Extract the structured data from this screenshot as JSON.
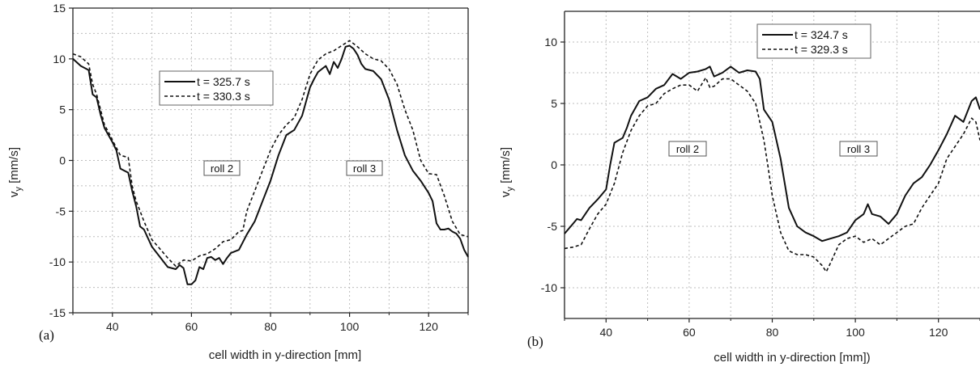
{
  "chart_data": [
    {
      "panel_label": "(a)",
      "type": "line",
      "xlabel": "cell width in y-direction [mm]",
      "ylabel_main": "v",
      "ylabel_sub": "y",
      "ylabel_unit": " [mm/s]",
      "xlim": [
        30,
        130
      ],
      "ylim": [
        -15,
        15
      ],
      "xticks": [
        40,
        60,
        80,
        100,
        120
      ],
      "yticks": [
        -15,
        -10,
        -5,
        0,
        5,
        10,
        15
      ],
      "grid": true,
      "legend_position": "top-left",
      "annotations": [
        {
          "text": "roll 2",
          "x": 56,
          "y": 0
        },
        {
          "text": "roll 3",
          "x": 99,
          "y": 0
        }
      ],
      "series": [
        {
          "name": "t = 325.7 s",
          "style": "solid",
          "x": [
            30,
            32,
            34,
            35,
            36,
            37,
            38,
            39,
            40,
            41,
            42,
            43,
            44,
            45,
            46,
            47,
            48,
            50,
            52,
            54,
            56,
            57,
            58,
            59,
            60,
            61,
            62,
            63,
            64,
            65,
            66,
            67,
            68,
            69,
            70,
            72,
            74,
            76,
            78,
            80,
            82,
            84,
            86,
            88,
            90,
            91,
            92,
            93,
            94,
            95,
            96,
            97,
            98,
            99,
            100,
            101,
            102,
            103,
            104,
            106,
            108,
            110,
            112,
            114,
            116,
            118,
            120,
            121,
            122,
            123,
            124,
            125,
            126,
            127,
            128,
            129,
            130
          ],
          "y": [
            10,
            9.3,
            8.9,
            6.5,
            6.2,
            4.5,
            3.2,
            2.5,
            1.8,
            1,
            -0.8,
            -1,
            -1.2,
            -3,
            -4.5,
            -6.5,
            -6.8,
            -8.5,
            -9.5,
            -10.5,
            -10.7,
            -10.3,
            -10.6,
            -12.2,
            -12.2,
            -11.8,
            -10.5,
            -10.7,
            -9.6,
            -9.5,
            -9.8,
            -9.6,
            -10.2,
            -9.6,
            -9.1,
            -8.8,
            -7.3,
            -6,
            -4,
            -2,
            0.5,
            2.5,
            3,
            4.4,
            7.2,
            8,
            8.7,
            9,
            9.3,
            8.5,
            9.7,
            9.1,
            10,
            11.2,
            11.3,
            11,
            10.4,
            9.5,
            9,
            8.8,
            8,
            6,
            3,
            0.5,
            -1,
            -2,
            -3.2,
            -4,
            -6.2,
            -6.8,
            -6.8,
            -6.7,
            -7,
            -7.2,
            -7.7,
            -8.8,
            -9.5
          ]
        },
        {
          "name": "t = 330.3 s",
          "style": "dashed",
          "x": [
            30,
            32,
            34,
            35,
            36,
            37,
            38,
            39,
            40,
            42,
            44,
            45,
            46,
            47,
            48,
            50,
            52,
            54,
            56,
            58,
            60,
            62,
            64,
            66,
            68,
            70,
            72,
            73,
            74,
            76,
            78,
            80,
            82,
            84,
            86,
            88,
            90,
            92,
            94,
            96,
            98,
            100,
            102,
            104,
            106,
            108,
            110,
            112,
            114,
            116,
            118,
            120,
            122,
            124,
            126,
            128,
            130
          ],
          "y": [
            10.5,
            10.2,
            9.5,
            7.5,
            6.5,
            5,
            3.5,
            2.8,
            2,
            0.5,
            0.3,
            -2.5,
            -4,
            -5,
            -6,
            -7.8,
            -8.7,
            -9.6,
            -10.4,
            -9.8,
            -9.9,
            -9.4,
            -9.2,
            -8.7,
            -8,
            -7.8,
            -7,
            -6.9,
            -5,
            -3,
            -1,
            1,
            2.5,
            3.5,
            4.2,
            6,
            8.5,
            9.9,
            10.5,
            10.8,
            11.3,
            11.8,
            11.2,
            10.5,
            10,
            9.8,
            9,
            7.5,
            5,
            3,
            0,
            -1.3,
            -1.4,
            -3.5,
            -6,
            -7.3,
            -7.5
          ]
        }
      ]
    },
    {
      "panel_label": "(b)",
      "type": "line",
      "xlabel": "cell width in y-direction [mm])",
      "ylabel_main": "v",
      "ylabel_sub": "y",
      "ylabel_unit": " [mm/s]",
      "xlim": [
        30,
        130
      ],
      "ylim": [
        -12.5,
        12.5
      ],
      "xticks": [
        40,
        60,
        80,
        100,
        120
      ],
      "yticks": [
        -10,
        -5,
        0,
        5,
        10
      ],
      "grid": true,
      "legend_position": "top-center",
      "annotations": [
        {
          "text": "roll 2",
          "x": 63,
          "y": 1.2
        },
        {
          "text": "roll 3",
          "x": 101,
          "y": 1.2
        }
      ],
      "series": [
        {
          "name": "t = 324.7 s",
          "style": "solid",
          "x": [
            30,
            32,
            33,
            34,
            36,
            38,
            40,
            41,
            42,
            44,
            45,
            46,
            48,
            50,
            52,
            54,
            56,
            58,
            60,
            62,
            64,
            65,
            66,
            68,
            70,
            72,
            74,
            76,
            77,
            78,
            80,
            82,
            84,
            86,
            88,
            90,
            92,
            94,
            96,
            98,
            100,
            102,
            103,
            104,
            106,
            108,
            110,
            112,
            114,
            116,
            118,
            120,
            122,
            124,
            126,
            128,
            129,
            130
          ],
          "y": [
            -5.6,
            -4.8,
            -4.4,
            -4.5,
            -3.5,
            -2.8,
            -2,
            0,
            1.8,
            2.2,
            3,
            4,
            5.2,
            5.5,
            6.2,
            6.5,
            7.4,
            7,
            7.5,
            7.6,
            7.8,
            8,
            7.2,
            7.5,
            8,
            7.5,
            7.7,
            7.6,
            7,
            4.5,
            3.5,
            0.5,
            -3.5,
            -5,
            -5.5,
            -5.8,
            -6.2,
            -6,
            -5.8,
            -5.5,
            -4.5,
            -4,
            -3.2,
            -4,
            -4.2,
            -4.8,
            -4,
            -2.5,
            -1.5,
            -1,
            0,
            1.2,
            2.5,
            4,
            3.5,
            5.2,
            5.5,
            4.5
          ]
        },
        {
          "name": "t = 329.3 s",
          "style": "dashed",
          "x": [
            30,
            32,
            34,
            36,
            38,
            40,
            42,
            44,
            46,
            48,
            50,
            52,
            54,
            56,
            58,
            60,
            62,
            64,
            65,
            66,
            68,
            70,
            72,
            74,
            76,
            78,
            79,
            80,
            82,
            84,
            86,
            88,
            90,
            92,
            93,
            94,
            96,
            98,
            100,
            102,
            104,
            106,
            108,
            110,
            112,
            114,
            116,
            118,
            120,
            122,
            124,
            126,
            128,
            129,
            130
          ],
          "y": [
            -6.8,
            -6.7,
            -6.5,
            -5.2,
            -4,
            -3.2,
            -1.5,
            1,
            2.8,
            4,
            4.8,
            5,
            5.8,
            6.2,
            6.5,
            6.5,
            6,
            7.1,
            6.3,
            6.4,
            7,
            7,
            6.5,
            6,
            5,
            2,
            -0.2,
            -2.5,
            -5.5,
            -7,
            -7.3,
            -7.3,
            -7.5,
            -8.2,
            -8.7,
            -8,
            -6.5,
            -6,
            -5.8,
            -6.3,
            -6,
            -6.5,
            -6,
            -5.5,
            -5,
            -4.8,
            -3.5,
            -2.5,
            -1.5,
            0.5,
            1.5,
            2.5,
            3.8,
            3.5,
            2
          ]
        }
      ]
    }
  ]
}
